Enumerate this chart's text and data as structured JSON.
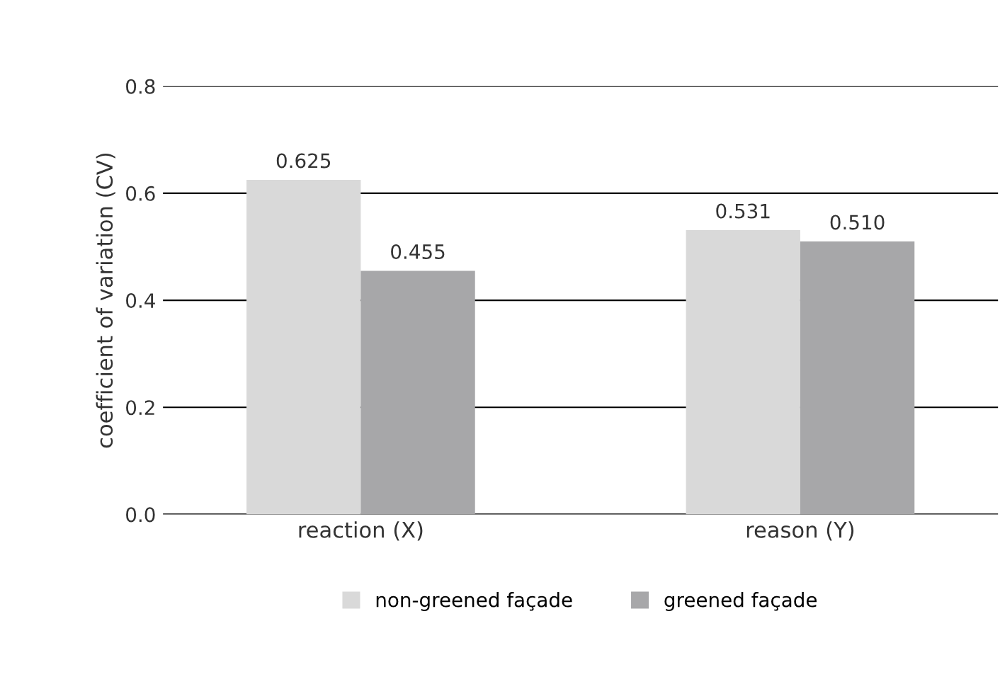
{
  "chart_data": {
    "type": "bar",
    "ylabel": "coefficient of variation (CV)",
    "categories": [
      "reaction (X)",
      "reason (Y)"
    ],
    "series": [
      {
        "name": "non-greened façade",
        "color": "#d9d9d9",
        "values": [
          0.625,
          0.531
        ],
        "value_labels": [
          "0.625",
          "0.531"
        ]
      },
      {
        "name": "greened façade",
        "color": "#a7a7a9",
        "values": [
          0.455,
          0.51
        ],
        "value_labels": [
          "0.455",
          "0.510"
        ]
      }
    ],
    "ylim": [
      0,
      0.8
    ],
    "yticks": [
      {
        "value": 0,
        "label": "0.0"
      },
      {
        "value": 0.2,
        "label": "0.2"
      },
      {
        "value": 0.4,
        "label": "0.4"
      },
      {
        "value": 0.6,
        "label": "0.6"
      },
      {
        "value": 0.8,
        "label": "0.8"
      }
    ],
    "grid": "y",
    "legend": "bottom"
  }
}
